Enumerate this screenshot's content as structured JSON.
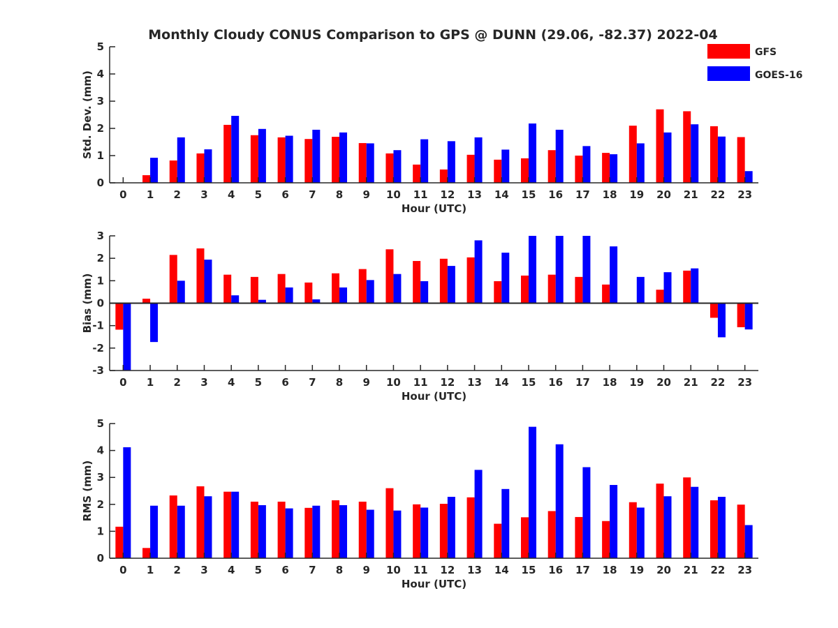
{
  "chart_data": {
    "type": "bar",
    "title": "Monthly Cloudy CONUS Comparison to GPS @ DUNN (29.06, -82.37) 2022-04",
    "categories": [
      "0",
      "1",
      "2",
      "3",
      "4",
      "5",
      "6",
      "7",
      "8",
      "9",
      "10",
      "11",
      "12",
      "13",
      "14",
      "15",
      "16",
      "17",
      "18",
      "19",
      "20",
      "21",
      "22",
      "23"
    ],
    "legend": {
      "placement": "top-right",
      "entries": [
        {
          "name": "GFS",
          "color": "#ff0000"
        },
        {
          "name": "GOES-16",
          "color": "#0000ff"
        }
      ]
    },
    "panels": [
      {
        "xlabel": "Hour (UTC)",
        "ylabel": "Std. Dev. (mm)",
        "ylim": [
          0,
          5
        ],
        "yticks": [
          0,
          1,
          2,
          3,
          4,
          5
        ],
        "series": [
          {
            "name": "GFS",
            "color": "#ff0000",
            "values": [
              0.0,
              0.28,
              0.82,
              1.08,
              2.13,
              1.75,
              1.67,
              1.61,
              1.69,
              1.46,
              1.08,
              0.67,
              0.49,
              1.03,
              0.85,
              0.9,
              1.2,
              1.0,
              1.1,
              2.1,
              2.7,
              2.63,
              2.08,
              1.68
            ]
          },
          {
            "name": "GOES-16",
            "color": "#0000ff",
            "values": [
              0.0,
              0.92,
              1.67,
              1.23,
              2.46,
              1.98,
              1.73,
              1.95,
              1.85,
              1.45,
              1.2,
              1.6,
              1.53,
              1.67,
              1.22,
              2.18,
              1.95,
              1.35,
              1.05,
              1.45,
              1.85,
              2.15,
              1.7,
              0.43
            ]
          }
        ]
      },
      {
        "xlabel": "Hour (UTC)",
        "ylabel": "Bias (mm)",
        "ylim": [
          -3,
          3
        ],
        "yticks": [
          -3,
          -2,
          -1,
          0,
          1,
          2,
          3
        ],
        "series": [
          {
            "name": "GFS",
            "color": "#ff0000",
            "values": [
              -1.18,
              0.2,
              2.15,
              2.44,
              1.27,
              1.17,
              1.3,
              0.92,
              1.33,
              1.52,
              2.4,
              1.88,
              1.98,
              2.04,
              0.98,
              1.23,
              1.27,
              1.17,
              0.83,
              0.0,
              0.6,
              1.45,
              -0.65,
              -1.07
            ]
          },
          {
            "name": "GOES-16",
            "color": "#0000ff",
            "values": [
              -3.0,
              -1.73,
              1.0,
              1.94,
              0.35,
              0.15,
              0.7,
              0.17,
              0.7,
              1.03,
              1.3,
              0.98,
              1.66,
              2.8,
              2.25,
              3.0,
              3.0,
              3.0,
              2.53,
              1.17,
              1.38,
              1.55,
              -1.52,
              -1.17
            ]
          }
        ]
      },
      {
        "xlabel": "Hour (UTC)",
        "ylabel": "RMS (mm)",
        "ylim": [
          0,
          5
        ],
        "yticks": [
          0,
          1,
          2,
          3,
          4,
          5
        ],
        "series": [
          {
            "name": "GFS",
            "color": "#ff0000",
            "values": [
              1.17,
              0.38,
              2.33,
              2.67,
              2.47,
              2.1,
              2.1,
              1.87,
              2.15,
              2.1,
              2.6,
              2.0,
              2.02,
              2.26,
              1.28,
              1.52,
              1.75,
              1.53,
              1.38,
              2.08,
              2.77,
              3.0,
              2.15,
              1.99
            ]
          },
          {
            "name": "GOES-16",
            "color": "#0000ff",
            "values": [
              4.12,
              1.95,
              1.95,
              2.3,
              2.47,
              1.97,
              1.85,
              1.95,
              1.97,
              1.8,
              1.77,
              1.88,
              2.28,
              3.28,
              2.57,
              4.88,
              4.23,
              3.38,
              2.72,
              1.88,
              2.3,
              2.65,
              2.28,
              1.23
            ]
          }
        ]
      }
    ]
  }
}
